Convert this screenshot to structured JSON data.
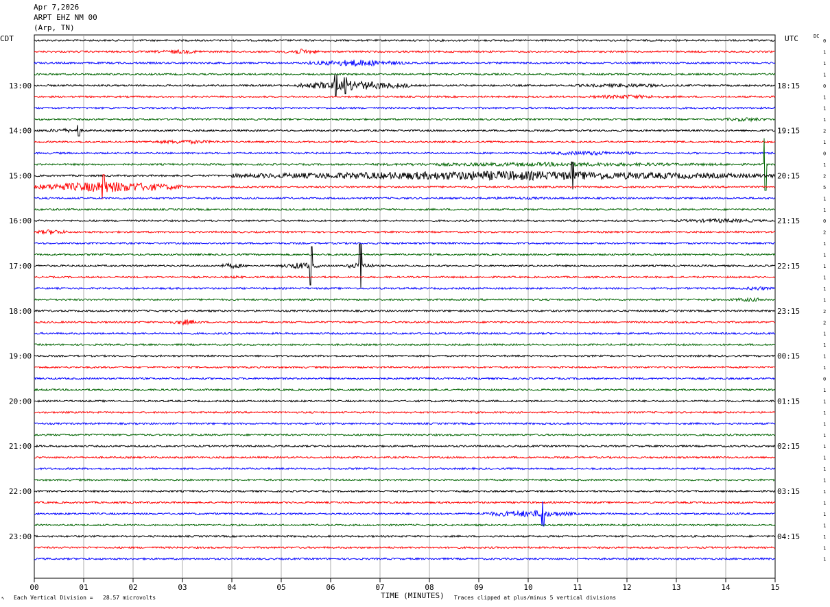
{
  "header": {
    "date": "Apr 7,2026",
    "station": "ARPT EHZ NM 00",
    "location": "(Arp, TN)"
  },
  "left_zone_label": "CDT",
  "right_zone_label": "UTC",
  "dc_label": "DC",
  "footer": {
    "scale_note": "Each Vertical Division =   28.57 microvolts",
    "x_title": "TIME (MINUTES)",
    "clip_note": "Traces clipped at plus/minus 5 vertical divisions"
  },
  "chart_data": {
    "type": "line",
    "title": "",
    "xlabel": "TIME (MINUTES)",
    "xlim": [
      0,
      15
    ],
    "x_ticks": [
      "00",
      "01",
      "02",
      "03",
      "04",
      "05",
      "06",
      "07",
      "08",
      "09",
      "10",
      "11",
      "12",
      "13",
      "14",
      "15"
    ],
    "left_hour_labels": [
      "13:00",
      "14:00",
      "15:00",
      "16:00",
      "17:00",
      "18:00",
      "19:00",
      "20:00",
      "21:00",
      "22:00",
      "23:00"
    ],
    "right_hour_labels": [
      "18:15",
      "19:15",
      "20:15",
      "21:15",
      "22:15",
      "23:15",
      "00:15",
      "01:15",
      "02:15",
      "03:15",
      "04:15"
    ],
    "trace_colors": [
      "#000000",
      "#ff0000",
      "#0000ff",
      "#006400"
    ],
    "dc_offsets": [
      0,
      1,
      1,
      1,
      0,
      1,
      1,
      1,
      2,
      1,
      0,
      1,
      2,
      5,
      1,
      1,
      0,
      2,
      1,
      1,
      1,
      1,
      1,
      1,
      2,
      2,
      1,
      1,
      1,
      1,
      0,
      1,
      1,
      1,
      1,
      1,
      1,
      1,
      1,
      1,
      1,
      1,
      1,
      1,
      1,
      1,
      1
    ],
    "events": [
      {
        "row": 1,
        "start": 2.3,
        "end": 3.6,
        "amp": 3
      },
      {
        "row": 1,
        "start": 5.0,
        "end": 5.8,
        "amp": 4
      },
      {
        "row": 2,
        "start": 5.5,
        "end": 7.5,
        "amp": 5
      },
      {
        "row": 4,
        "start": 5.3,
        "end": 7.6,
        "amp": 7
      },
      {
        "row": 4,
        "start": 10.7,
        "end": 13.2,
        "amp": 3
      },
      {
        "row": 5,
        "start": 11.0,
        "end": 13.0,
        "amp": 3
      },
      {
        "row": 7,
        "start": 13.8,
        "end": 15.0,
        "amp": 3
      },
      {
        "row": 8,
        "start": 0.0,
        "end": 1.2,
        "amp": 3
      },
      {
        "row": 9,
        "start": 2.0,
        "end": 4.0,
        "amp": 3
      },
      {
        "row": 10,
        "start": 10.0,
        "end": 12.5,
        "amp": 3
      },
      {
        "row": 11,
        "start": 6.0,
        "end": 15.0,
        "amp": 3
      },
      {
        "row": 12,
        "start": 4.0,
        "end": 15.0,
        "amp": 7
      },
      {
        "row": 13,
        "start": 0.0,
        "end": 3.0,
        "amp": 8
      },
      {
        "row": 14,
        "start": 8.0,
        "end": 11.5,
        "amp": 2
      },
      {
        "row": 16,
        "start": 12.8,
        "end": 15.0,
        "amp": 3
      },
      {
        "row": 17,
        "start": 0.0,
        "end": 0.7,
        "amp": 4
      },
      {
        "row": 20,
        "start": 3.7,
        "end": 4.3,
        "amp": 4
      },
      {
        "row": 20,
        "start": 5.0,
        "end": 5.8,
        "amp": 5
      },
      {
        "row": 20,
        "start": 6.3,
        "end": 6.9,
        "amp": 5
      },
      {
        "row": 21,
        "start": 3.8,
        "end": 4.4,
        "amp": 2
      },
      {
        "row": 22,
        "start": 14.3,
        "end": 15.0,
        "amp": 3
      },
      {
        "row": 23,
        "start": 14.0,
        "end": 15.0,
        "amp": 3
      },
      {
        "row": 25,
        "start": 2.7,
        "end": 3.4,
        "amp": 4
      },
      {
        "row": 42,
        "start": 9.0,
        "end": 11.0,
        "amp": 5
      }
    ],
    "spikes": [
      {
        "row": 4,
        "t": 6.1,
        "amp": 16
      },
      {
        "row": 4,
        "t": 6.3,
        "amp": 12
      },
      {
        "row": 8,
        "t": 0.9,
        "amp": 8
      },
      {
        "row": 11,
        "t": 14.8,
        "amp": 38
      },
      {
        "row": 12,
        "t": 10.9,
        "amp": 20
      },
      {
        "row": 13,
        "t": 1.4,
        "amp": 18
      },
      {
        "row": 20,
        "t": 5.6,
        "amp": 28
      },
      {
        "row": 20,
        "t": 6.6,
        "amp": 32
      },
      {
        "row": 42,
        "t": 10.3,
        "amp": 18
      }
    ]
  }
}
